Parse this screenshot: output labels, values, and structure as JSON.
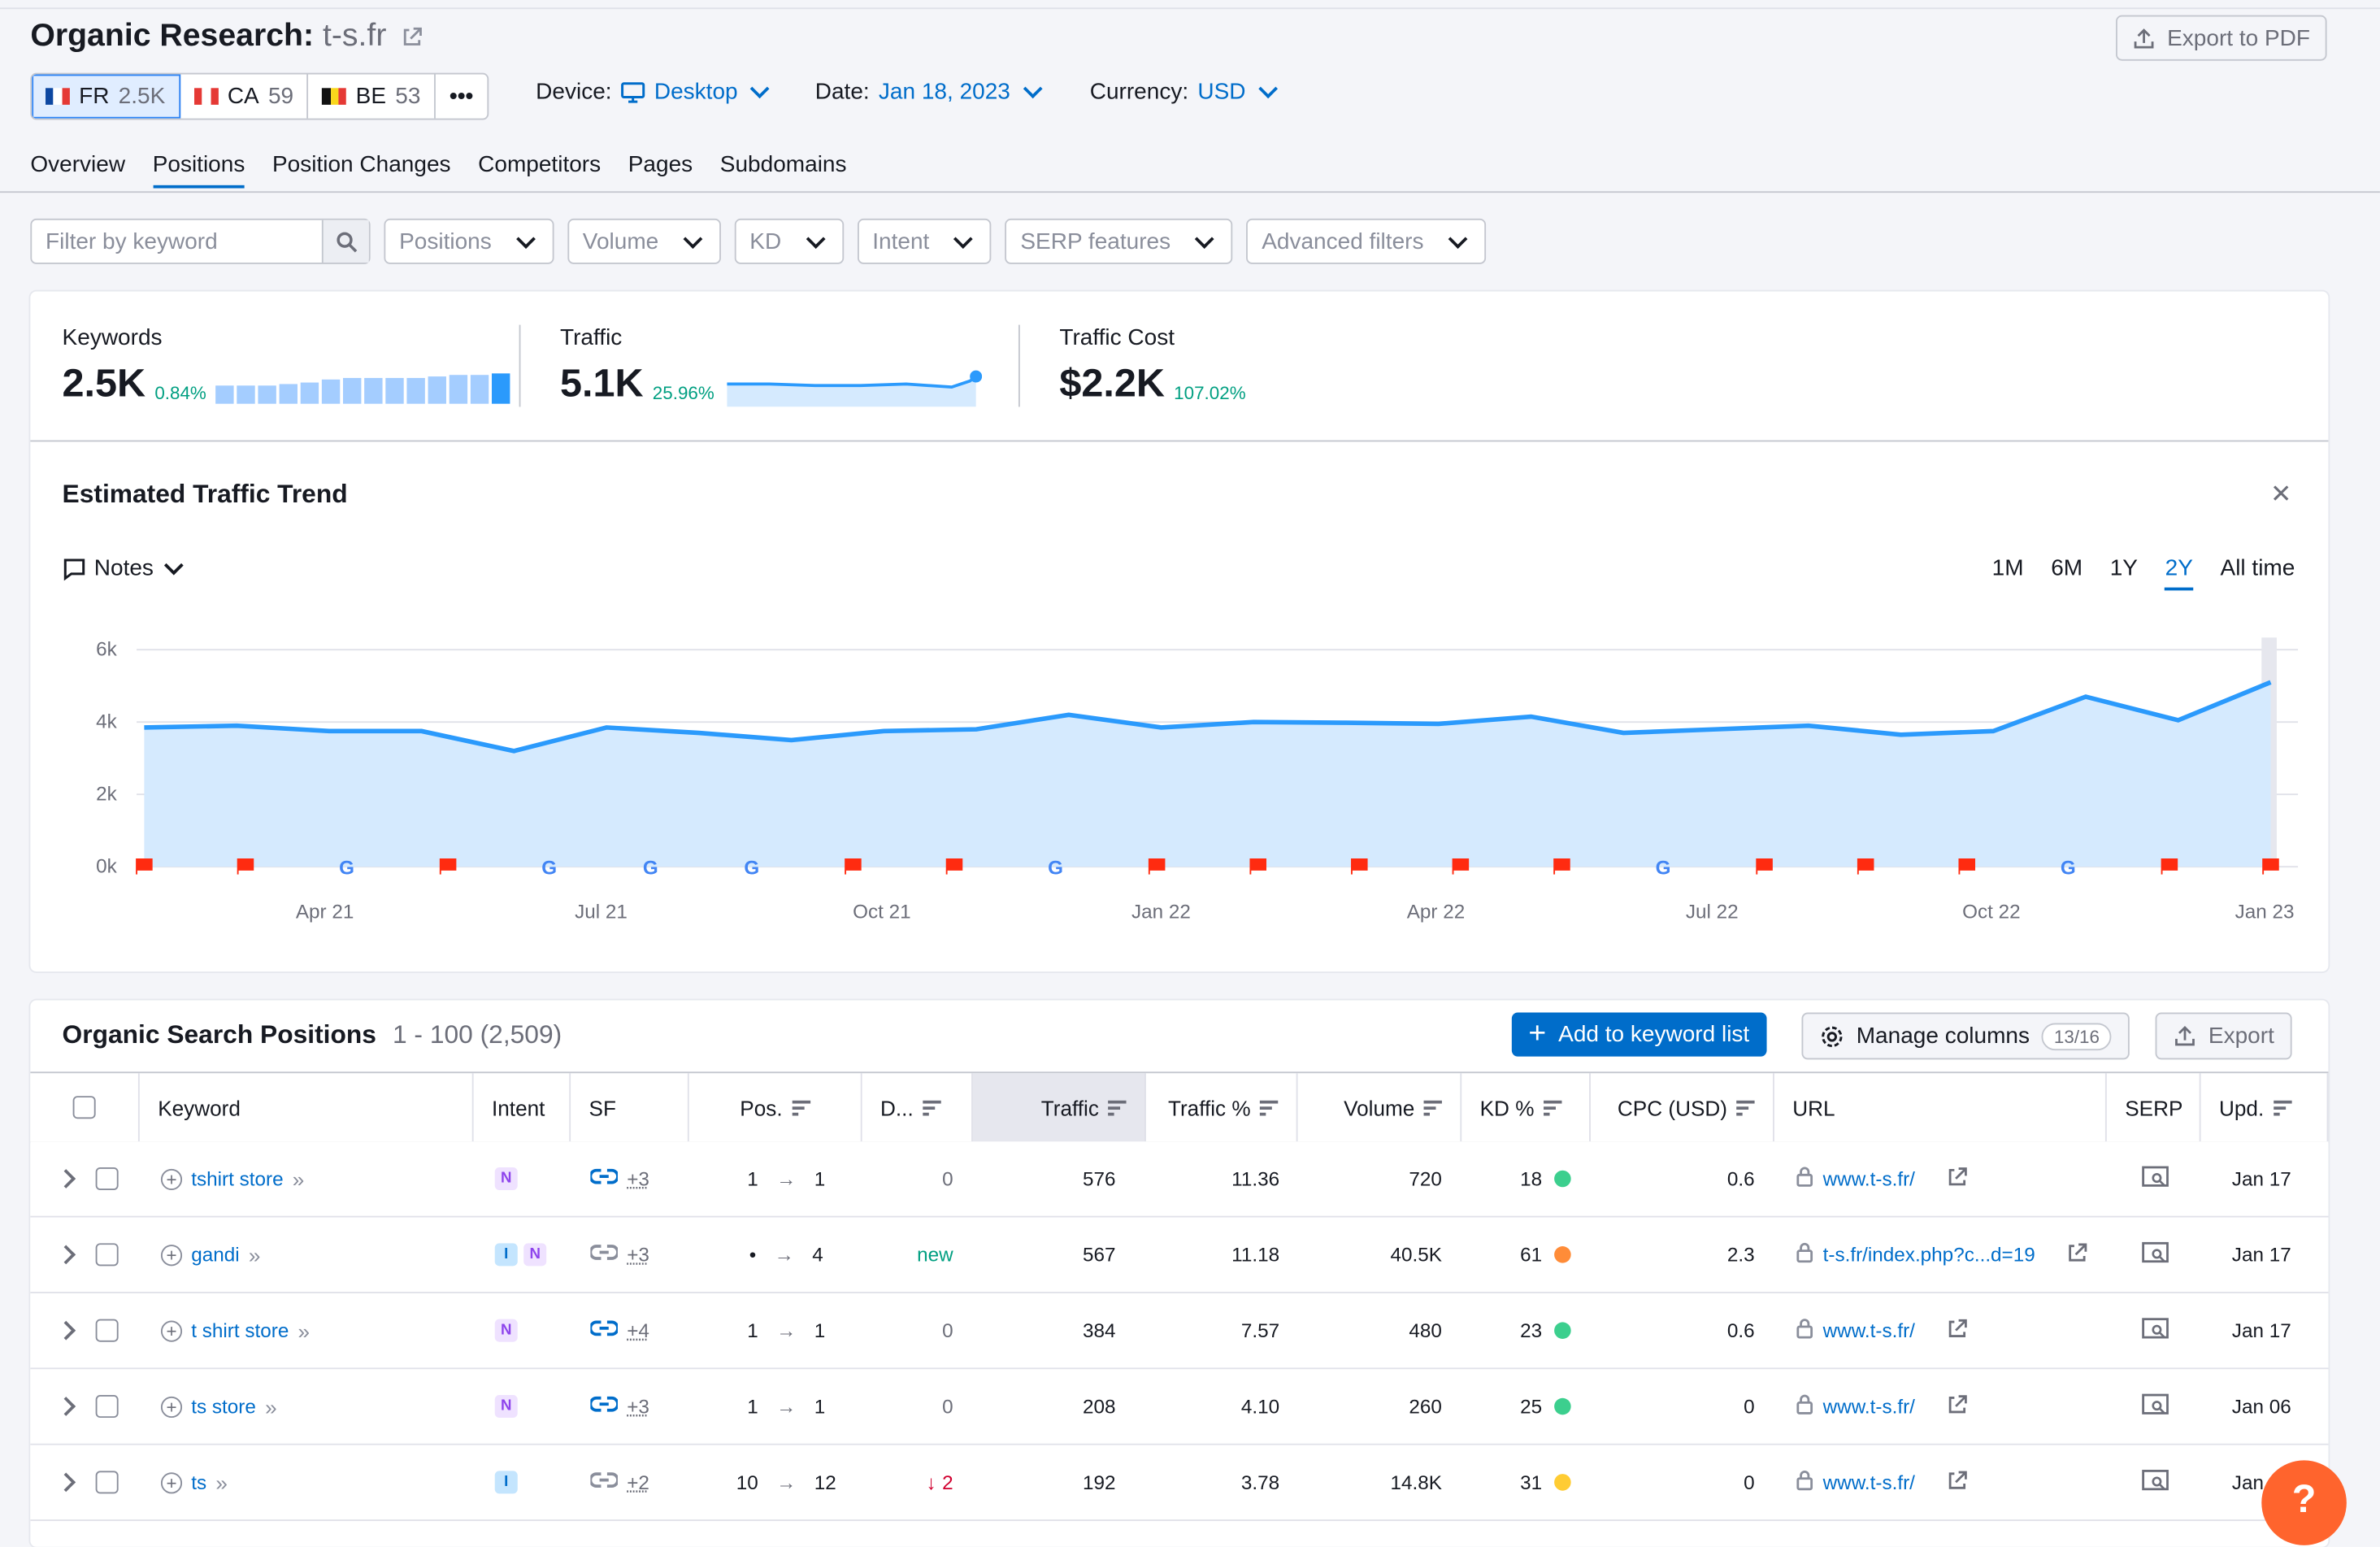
{
  "header": {
    "title": "Organic Research:",
    "domain": "t-s.fr",
    "export_pdf": "Export to PDF"
  },
  "databases": [
    {
      "code": "FR",
      "count": "2.5K",
      "colors": [
        "#0d47a1",
        "#ffffff",
        "#e53935"
      ]
    },
    {
      "code": "CA",
      "count": "59",
      "colors": [
        "#e53935",
        "#ffffff",
        "#e53935"
      ]
    },
    {
      "code": "BE",
      "count": "53",
      "colors": [
        "#111111",
        "#f9d71c",
        "#e53935"
      ]
    }
  ],
  "more_icon": "•••",
  "selectors": {
    "device_label": "Device:",
    "device_value": "Desktop",
    "date_label": "Date:",
    "date_value": "Jan 18, 2023",
    "currency_label": "Currency:",
    "currency_value": "USD"
  },
  "tabs": [
    "Overview",
    "Positions",
    "Position Changes",
    "Competitors",
    "Pages",
    "Subdomains"
  ],
  "active_tab": "Positions",
  "filters": {
    "search_placeholder": "Filter by keyword",
    "dropdowns": [
      "Positions",
      "Volume",
      "KD",
      "Intent",
      "SERP features",
      "Advanced filters"
    ]
  },
  "metrics": {
    "keywords": {
      "label": "Keywords",
      "value": "2.5K",
      "change": "0.84%"
    },
    "traffic": {
      "label": "Traffic",
      "value": "5.1K",
      "change": "25.96%"
    },
    "traffic_cost": {
      "label": "Traffic Cost",
      "value": "$2.2K",
      "change": "107.02%"
    }
  },
  "keyword_bars": [
    0.62,
    0.62,
    0.62,
    0.66,
    0.72,
    0.8,
    0.84,
    0.84,
    0.86,
    0.86,
    0.9,
    0.94,
    0.94,
    1.0
  ],
  "trend": {
    "title": "Estimated Traffic Trend",
    "notes_label": "Notes",
    "ranges": [
      "1M",
      "6M",
      "1Y",
      "2Y",
      "All time"
    ],
    "active_range": "2Y"
  },
  "chart_data": {
    "type": "area",
    "ylim": [
      0,
      6000
    ],
    "y_ticks": [
      "0k",
      "2k",
      "4k",
      "6k"
    ],
    "x_labels": [
      "Apr 21",
      "Jul 21",
      "Oct 21",
      "Jan 22",
      "Apr 22",
      "Jul 22",
      "Oct 22",
      "Jan 23"
    ],
    "values": [
      3850,
      3900,
      3750,
      3750,
      3200,
      3850,
      3700,
      3500,
      3750,
      3800,
      4200,
      3850,
      4000,
      3980,
      3950,
      4150,
      3700,
      3800,
      3900,
      3650,
      3750,
      4700,
      4050,
      5100
    ],
    "note_markers": [
      "flag",
      "flag",
      "google",
      "flag",
      "google",
      "google",
      "google",
      "flag",
      "flag",
      "google",
      "flag",
      "flag",
      "flag",
      "flag",
      "flag",
      "google",
      "flag",
      "flag",
      "flag",
      "google",
      "flag",
      "flag"
    ],
    "colors": {
      "line": "#2b9afc",
      "fill": "#d5eafe",
      "flag": "#ff2b10"
    }
  },
  "table": {
    "title": "Organic Search Positions",
    "range": "1 - 100 (2,509)",
    "add_button": "Add to keyword list",
    "manage_button": "Manage columns",
    "manage_badge": "13/16",
    "export_button": "Export",
    "columns": [
      "Keyword",
      "Intent",
      "SF",
      "Pos.",
      "D...",
      "Traffic",
      "Traffic %",
      "Volume",
      "KD %",
      "CPC (USD)",
      "URL",
      "SERP",
      "Upd."
    ],
    "rows": [
      {
        "keyword": "tshirt store",
        "intent": [
          "N"
        ],
        "sf": "+3",
        "sf_linked": true,
        "pos_from": "1",
        "pos_to": "1",
        "diff": "0",
        "diff_type": "zero",
        "traffic": "576",
        "traffic_pct": "11.36",
        "volume": "720",
        "kd": "18",
        "kd_color": "#3ccf8e",
        "cpc": "0.6",
        "url": "www.t-s.fr/",
        "upd": "Jan 17"
      },
      {
        "keyword": "gandi",
        "intent": [
          "I",
          "N"
        ],
        "sf": "+3",
        "sf_linked": false,
        "pos_from": "•",
        "pos_to": "4",
        "diff": "new",
        "diff_type": "new",
        "traffic": "567",
        "traffic_pct": "11.18",
        "volume": "40.5K",
        "kd": "61",
        "kd_color": "#ff8c38",
        "cpc": "2.3",
        "url": "t-s.fr/index.php?c...d=19",
        "upd": "Jan 17"
      },
      {
        "keyword": "t shirt store",
        "intent": [
          "N"
        ],
        "sf": "+4",
        "sf_linked": true,
        "pos_from": "1",
        "pos_to": "1",
        "diff": "0",
        "diff_type": "zero",
        "traffic": "384",
        "traffic_pct": "7.57",
        "volume": "480",
        "kd": "23",
        "kd_color": "#3ccf8e",
        "cpc": "0.6",
        "url": "www.t-s.fr/",
        "upd": "Jan 17"
      },
      {
        "keyword": "ts store",
        "intent": [
          "N"
        ],
        "sf": "+3",
        "sf_linked": true,
        "pos_from": "1",
        "pos_to": "1",
        "diff": "0",
        "diff_type": "zero",
        "traffic": "208",
        "traffic_pct": "4.10",
        "volume": "260",
        "kd": "25",
        "kd_color": "#3ccf8e",
        "cpc": "0",
        "url": "www.t-s.fr/",
        "upd": "Jan 06"
      },
      {
        "keyword": "ts",
        "intent": [
          "I"
        ],
        "sf": "+2",
        "sf_linked": false,
        "pos_from": "10",
        "pos_to": "12",
        "diff": "2",
        "diff_type": "down",
        "traffic": "192",
        "traffic_pct": "3.78",
        "volume": "14.8K",
        "kd": "31",
        "kd_color": "#ffcc33",
        "cpc": "0",
        "url": "www.t-s.fr/",
        "upd": "Jan 17"
      }
    ]
  },
  "help_label": "?"
}
